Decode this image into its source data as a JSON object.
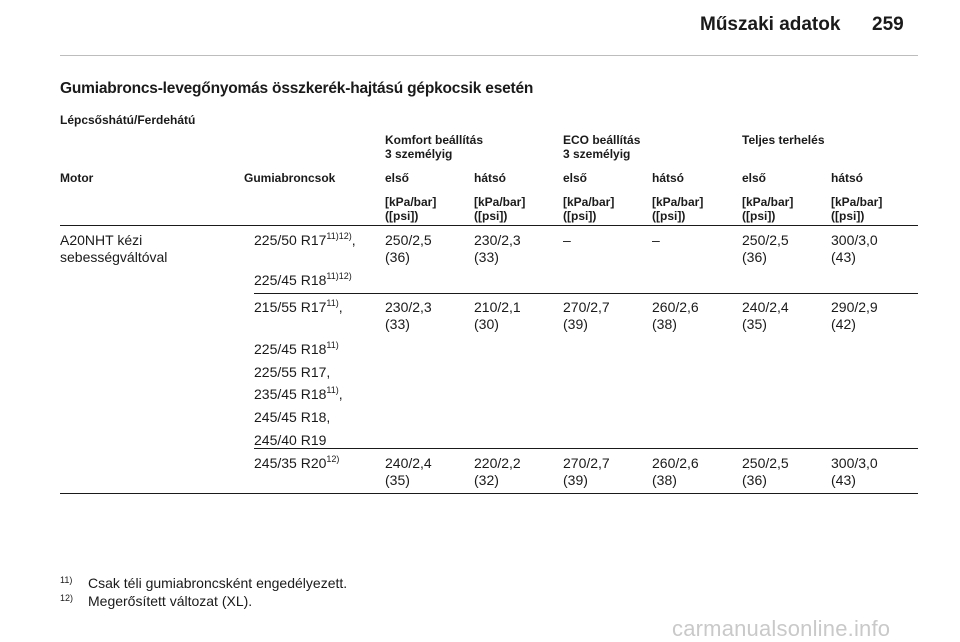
{
  "header": {
    "title": "Műszaki adatok",
    "page_number": "259"
  },
  "section_title": "Gumiabroncs-levegőnyomás összkerék-hajtású gépkocsik esetén",
  "subtitle": "Lépcsőshátú/Ferdehátú",
  "table": {
    "groups": {
      "komfort": [
        "Komfort beállítás",
        "3 személyig"
      ],
      "eco": [
        "ECO beállítás",
        "3 személyig"
      ],
      "full": "Teljes terhelés"
    },
    "col_motor": "Motor",
    "col_tyres": "Gumiabroncsok",
    "col_front": "első",
    "col_rear": "hátsó",
    "unit": [
      "[kPa/bar]",
      "([psi])"
    ],
    "motor": [
      "A20NHT kézi",
      "sebességváltóval"
    ],
    "rows": [
      {
        "tyres": [
          {
            "text": "225/50 R17",
            "sup": "11)12)",
            "suffix": ","
          },
          {
            "text": "225/45 R18",
            "sup": "11)12)",
            "suffix": ""
          }
        ],
        "values": [
          [
            "250/2,5",
            "(36)"
          ],
          [
            "230/2,3",
            "(33)"
          ],
          [
            "–",
            ""
          ],
          [
            "–",
            ""
          ],
          [
            "250/2,5",
            "(36)"
          ],
          [
            "300/3,0",
            "(43)"
          ]
        ]
      },
      {
        "tyres": [
          {
            "text": "215/55 R17",
            "sup": "11)",
            "suffix": ","
          },
          {
            "text": "225/45 R18",
            "sup": "11)",
            "suffix": ""
          },
          {
            "text": "225/55 R17,",
            "sup": "",
            "suffix": ""
          },
          {
            "text": "235/45 R18",
            "sup": "11)",
            "suffix": ","
          },
          {
            "text": "245/45 R18,",
            "sup": "",
            "suffix": ""
          },
          {
            "text": "245/40 R19",
            "sup": "",
            "suffix": ""
          }
        ],
        "values": [
          [
            "230/2,3",
            "(33)"
          ],
          [
            "210/2,1",
            "(30)"
          ],
          [
            "270/2,7",
            "(39)"
          ],
          [
            "260/2,6",
            "(38)"
          ],
          [
            "240/2,4",
            "(35)"
          ],
          [
            "290/2,9",
            "(42)"
          ]
        ]
      },
      {
        "tyres": [
          {
            "text": "245/35 R20",
            "sup": "12)",
            "suffix": ""
          }
        ],
        "values": [
          [
            "240/2,4",
            "(35)"
          ],
          [
            "220/2,2",
            "(32)"
          ],
          [
            "270/2,7",
            "(39)"
          ],
          [
            "260/2,6",
            "(38)"
          ],
          [
            "250/2,5",
            "(36)"
          ],
          [
            "300/3,0",
            "(43)"
          ]
        ]
      }
    ]
  },
  "footnotes": [
    {
      "mark": "11)",
      "text": "Csak téli gumiabroncsként engedélyezett."
    },
    {
      "mark": "12)",
      "text": "Megerősített változat (XL)."
    }
  ],
  "watermark": "carmanualsonline.info"
}
